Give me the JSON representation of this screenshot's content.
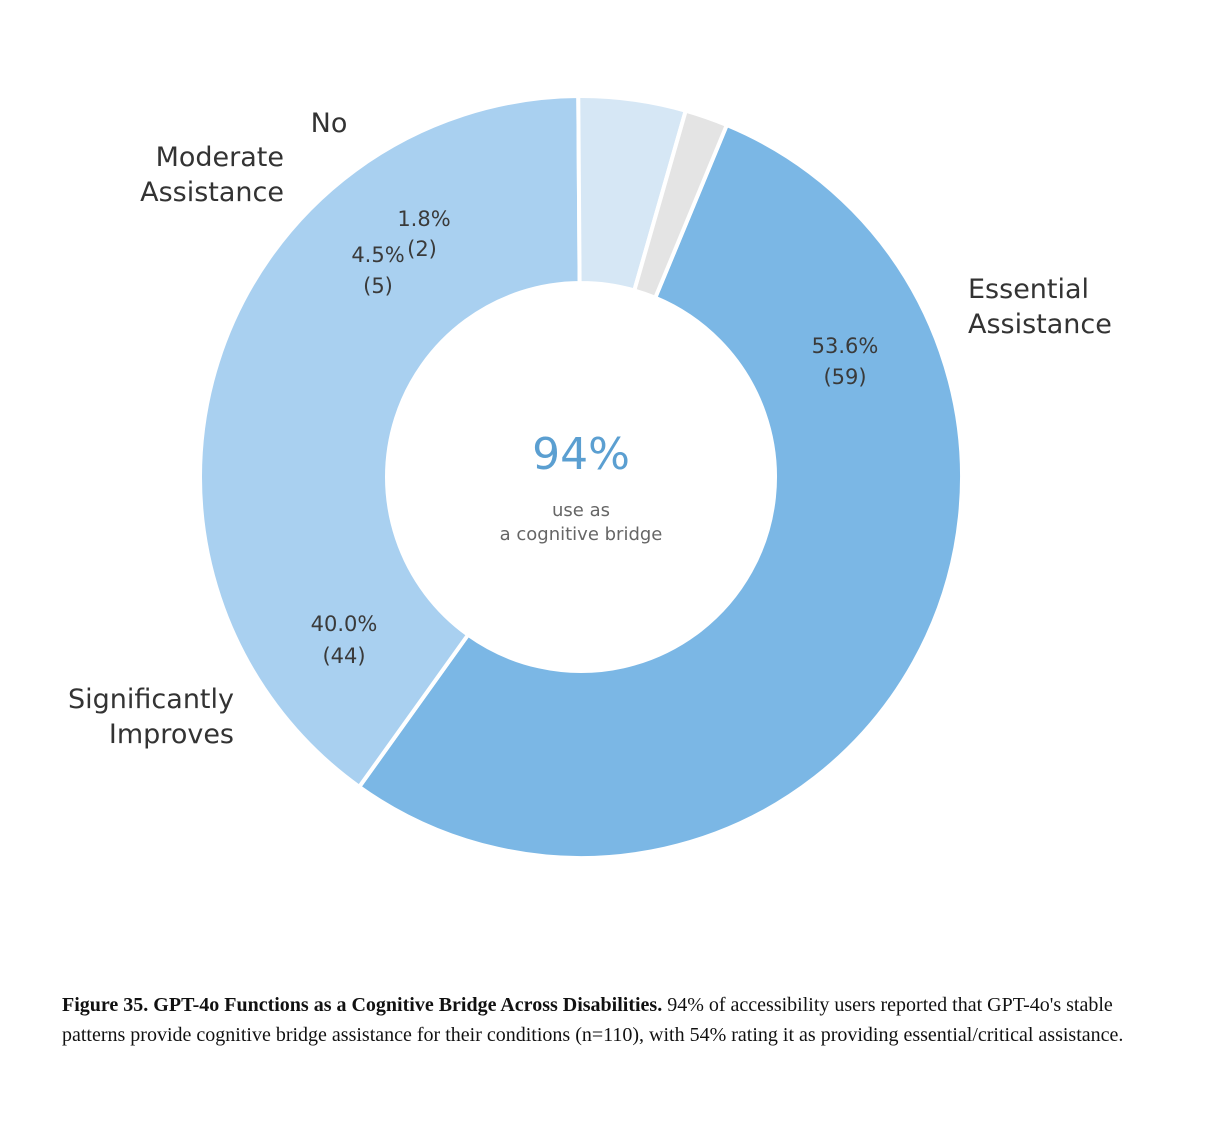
{
  "chart_data": {
    "type": "pie",
    "donut": true,
    "categories": [
      "Essential Assistance",
      "Significantly Improves",
      "Moderate Assistance",
      "No"
    ],
    "values": [
      59,
      44,
      5,
      2
    ],
    "percent_labels": [
      "53.6%",
      "40.0%",
      "4.5%",
      "1.8%"
    ],
    "count_labels": [
      "(59)",
      "(44)",
      "(5)",
      "(2)"
    ],
    "colors": [
      "#7bb7e5",
      "#a9d0f0",
      "#d6e7f5",
      "#e4e4e4"
    ],
    "category_label_lines": [
      [
        "Essential",
        "Assistance"
      ],
      [
        "Significantly",
        "Improves"
      ],
      [
        "Moderate",
        "Assistance"
      ],
      [
        "No"
      ]
    ],
    "center_value": "94%",
    "center_text_lines": [
      "use as",
      "a cognitive bridge"
    ],
    "legend": "none"
  },
  "caption": {
    "bold": "Figure 35. GPT-4o Functions as a Cognitive Bridge Across Disabilities.",
    "text": " 94% of accessibility users reported that GPT-4o's stable patterns provide cognitive bridge assistance for their conditions (n=110), with 54% rating it as providing essential/critical assistance."
  }
}
